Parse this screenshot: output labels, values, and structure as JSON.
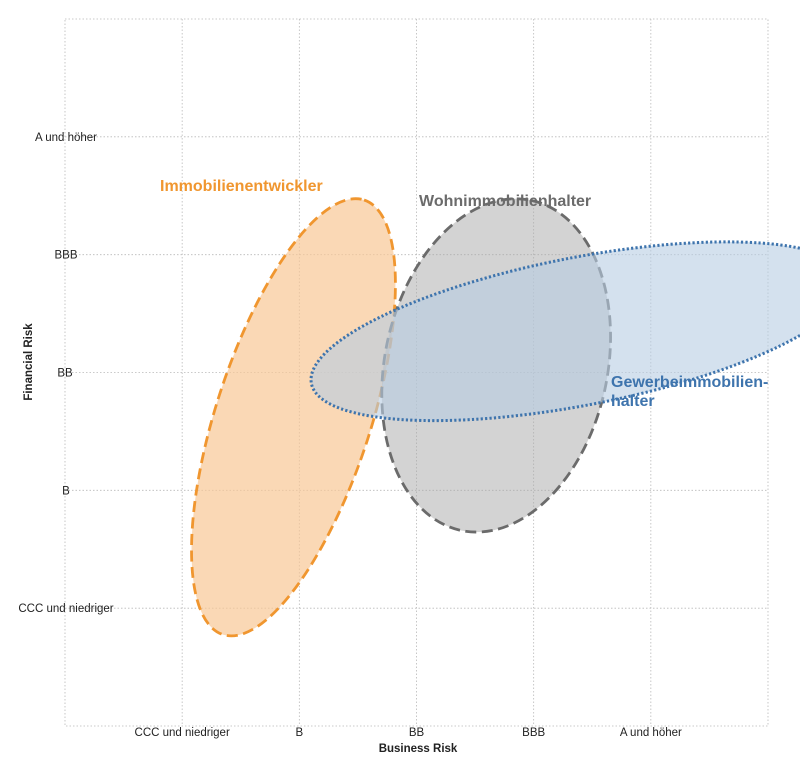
{
  "chart_data": {
    "type": "scatter",
    "title": "",
    "xlabel": "Business Risk",
    "ylabel": "Financial Risk",
    "x_ticks": [
      "CCC und niedriger",
      "B",
      "BB",
      "BBB",
      "A und höher"
    ],
    "y_ticks": [
      "CCC und niedriger",
      "B",
      "BB",
      "BBB",
      "A und höher"
    ],
    "xlim": [
      0,
      6
    ],
    "ylim": [
      0,
      6
    ],
    "grid": true,
    "series": [
      {
        "name": "Immobilienentwickler",
        "label_lines": [
          "Immobilienentwickler"
        ],
        "shape": "ellipse",
        "center": [
          1.95,
          2.62
        ],
        "radii": [
          1.95,
          0.66
        ],
        "rotation_deg": 72,
        "color": "#f0962f",
        "fill": "#f8c896",
        "fill_opacity": 0.7,
        "line_style": "dashed"
      },
      {
        "name": "Wohnimmobilienhalter",
        "label_lines": [
          "Wohnimmobilienhalter"
        ],
        "shape": "ellipse",
        "center": [
          3.68,
          3.06
        ],
        "radii": [
          1.44,
          0.95
        ],
        "rotation_deg": 78,
        "color": "#6b6b6b",
        "fill": "#a8a8a8",
        "fill_opacity": 0.5,
        "line_style": "dashed"
      },
      {
        "name": "Gewerbeimmobilienhalter",
        "label_lines": [
          "Gewerbeimmobilien-",
          "halter"
        ],
        "shape": "ellipse",
        "center": [
          4.4,
          3.35
        ],
        "radii": [
          2.34,
          0.63
        ],
        "rotation_deg": 11,
        "color": "#3e74ad",
        "fill": "#b7cde2",
        "fill_opacity": 0.6,
        "line_style": "dotted"
      }
    ]
  }
}
